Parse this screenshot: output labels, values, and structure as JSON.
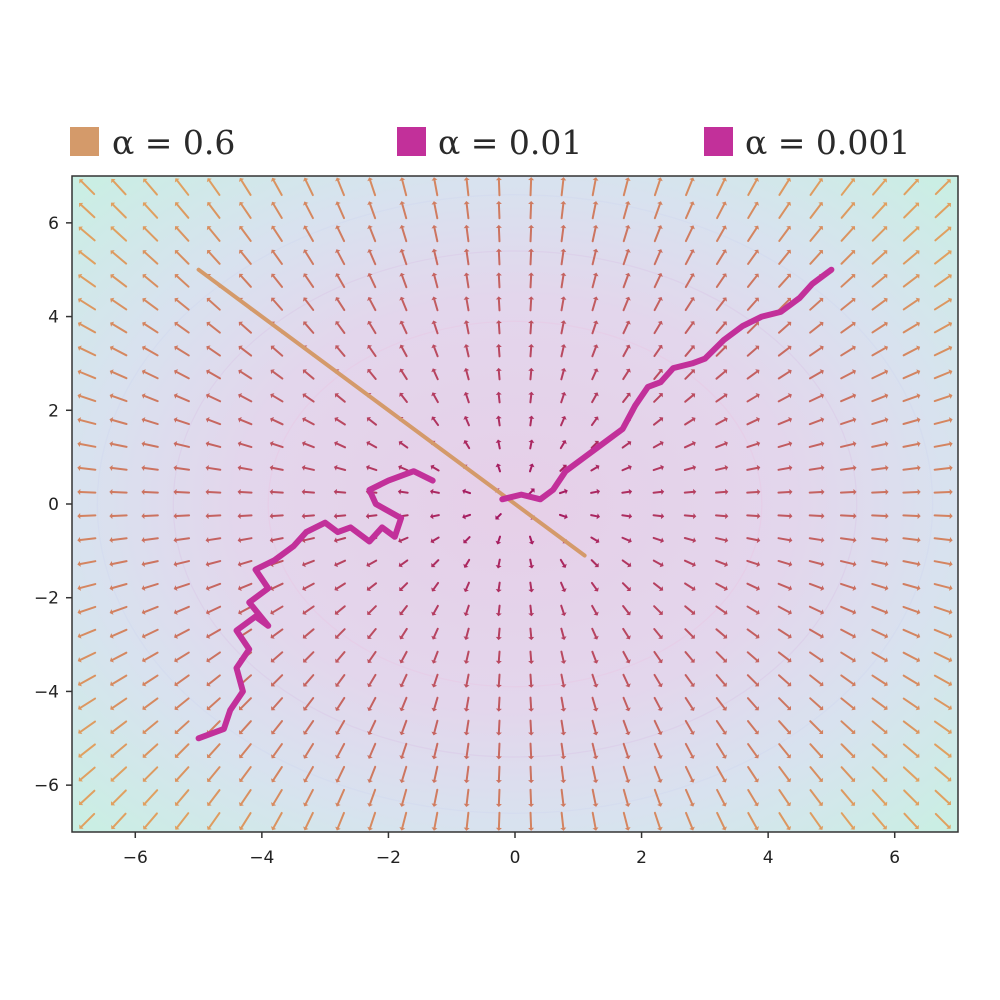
{
  "chart_data": {
    "type": "line",
    "title": "",
    "xlabel": "",
    "ylabel": "",
    "xlim": [
      -7,
      7
    ],
    "ylim": [
      -7,
      7
    ],
    "grid": false,
    "legend_position": "top",
    "x_ticks": [
      -6,
      -4,
      -2,
      0,
      2,
      4,
      6
    ],
    "y_ticks": [
      -6,
      -4,
      -2,
      0,
      2,
      4,
      6
    ],
    "x_tick_labels": [
      "−6",
      "−4",
      "−2",
      "0",
      "2",
      "4",
      "6"
    ],
    "y_tick_labels": [
      "−6",
      "−4",
      "−2",
      "0",
      "2",
      "4",
      "6"
    ],
    "legend": [
      {
        "label": "α = 0.6",
        "color": "#d49a6a"
      },
      {
        "label": "α = 0.01",
        "color": "#c2309a"
      },
      {
        "label": "α = 0.001",
        "color": "#c2309a"
      }
    ],
    "series": [
      {
        "label_ref": 0,
        "color": "#d49a6a",
        "points": [
          [
            -5.0,
            5.0
          ],
          [
            1.1,
            -1.1
          ]
        ]
      },
      {
        "label_ref": 1,
        "color": "#c2309a",
        "points": [
          [
            -0.2,
            0.1
          ],
          [
            0.1,
            0.2
          ],
          [
            0.4,
            0.1
          ],
          [
            0.6,
            0.3
          ],
          [
            0.8,
            0.7
          ],
          [
            1.1,
            1.0
          ],
          [
            1.4,
            1.3
          ],
          [
            1.7,
            1.6
          ],
          [
            1.9,
            2.1
          ],
          [
            2.1,
            2.5
          ],
          [
            2.3,
            2.6
          ],
          [
            2.5,
            2.9
          ],
          [
            2.8,
            3.0
          ],
          [
            3.0,
            3.1
          ],
          [
            3.3,
            3.5
          ],
          [
            3.6,
            3.8
          ],
          [
            3.9,
            4.0
          ],
          [
            4.2,
            4.1
          ],
          [
            4.5,
            4.4
          ],
          [
            4.7,
            4.7
          ],
          [
            5.0,
            5.0
          ]
        ]
      },
      {
        "label_ref": 2,
        "color": "#c2309a",
        "points": [
          [
            -5.0,
            -5.0
          ],
          [
            -4.6,
            -4.8
          ],
          [
            -4.5,
            -4.4
          ],
          [
            -4.3,
            -4.0
          ],
          [
            -4.4,
            -3.5
          ],
          [
            -4.2,
            -3.1
          ],
          [
            -4.4,
            -2.7
          ],
          [
            -4.1,
            -2.4
          ],
          [
            -3.9,
            -2.6
          ],
          [
            -4.2,
            -2.1
          ],
          [
            -3.9,
            -1.8
          ],
          [
            -4.1,
            -1.4
          ],
          [
            -3.8,
            -1.2
          ],
          [
            -3.5,
            -0.9
          ],
          [
            -3.3,
            -0.6
          ],
          [
            -3.0,
            -0.4
          ],
          [
            -2.8,
            -0.6
          ],
          [
            -2.6,
            -0.5
          ],
          [
            -2.3,
            -0.8
          ],
          [
            -2.1,
            -0.5
          ],
          [
            -1.9,
            -0.7
          ],
          [
            -1.8,
            -0.3
          ],
          [
            -2.2,
            0.0
          ],
          [
            -2.3,
            0.3
          ],
          [
            -2.0,
            0.5
          ],
          [
            -1.6,
            0.7
          ],
          [
            -1.3,
            0.5
          ]
        ]
      }
    ]
  },
  "colors": {
    "alpha_06": "#d49a6a",
    "alpha_small": "#c2309a",
    "arrow_outer": "#e0a060",
    "arrow_inner": "#a01060",
    "background_outer": "#cdeee0",
    "background_inner": "#eacdec"
  }
}
